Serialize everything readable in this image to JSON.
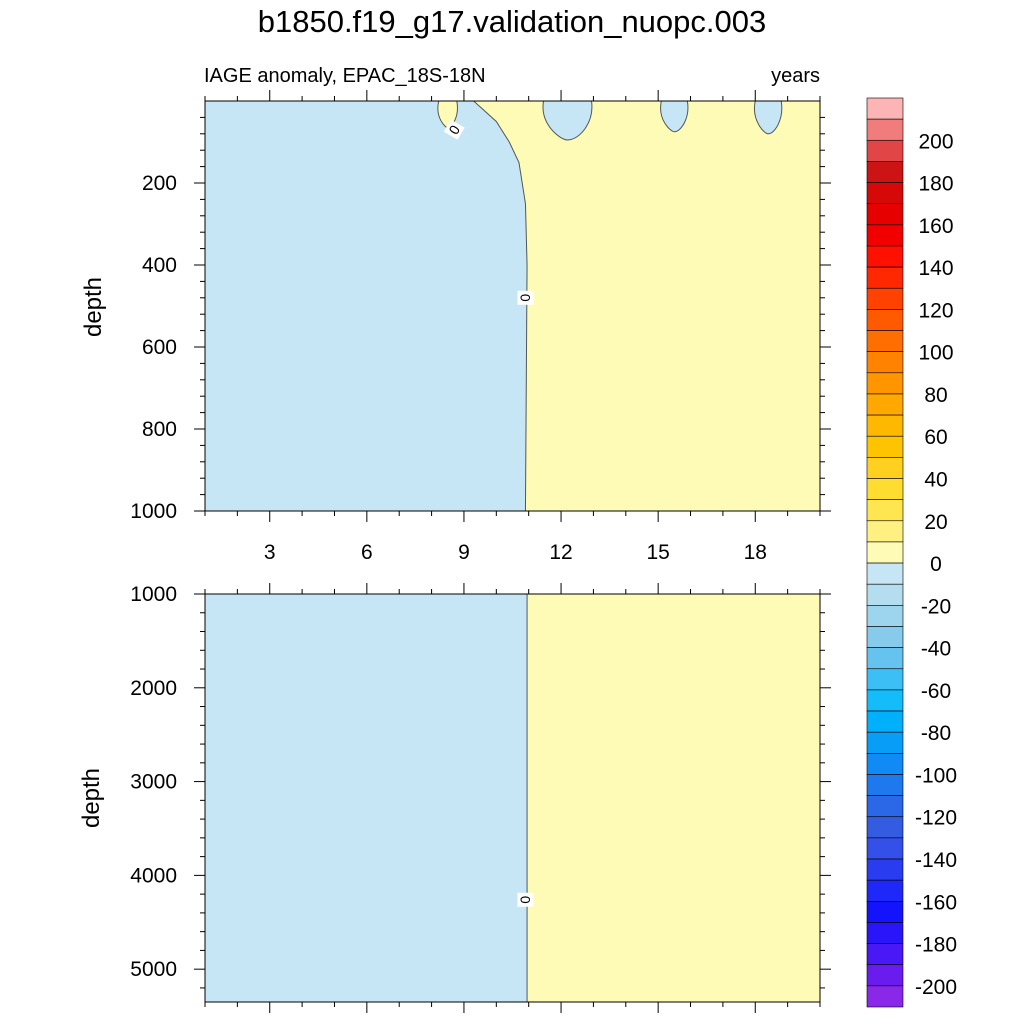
{
  "title": "b1850.f19_g17.validation_nuopc.003",
  "subtitle_left": "IAGE anomaly, EPAC_18S-18N",
  "subtitle_right": "years",
  "colors": {
    "negative_fill": "#c6e6f5",
    "positive_fill": "#fefbb6",
    "contour_line": "#555555"
  },
  "chart_data": [
    {
      "type": "heatmap",
      "name": "upper",
      "ylabel": "depth",
      "xlim": [
        1,
        20
      ],
      "ylim": [
        1000,
        0
      ],
      "xticks": [
        3,
        6,
        9,
        12,
        15,
        18
      ],
      "yticks": [
        200,
        400,
        600,
        800,
        1000
      ],
      "x_tick_labels": [
        "3",
        "6",
        "9",
        "12",
        "15",
        "18"
      ],
      "y_tick_labels": [
        "200",
        "400",
        "600",
        "800",
        "1000"
      ],
      "contour_labels": [
        {
          "text": "0",
          "x": 8.7,
          "depth": 70
        },
        {
          "text": "0",
          "x": 10.9,
          "depth": 480
        }
      ],
      "zero_contour_boundary": [
        [
          10.9,
          1000
        ],
        [
          10.95,
          400
        ],
        [
          10.9,
          250
        ],
        [
          10.7,
          150
        ],
        [
          10.4,
          100
        ],
        [
          10.0,
          50
        ],
        [
          9.3,
          0
        ]
      ],
      "negative_patches_in_positive_region": [
        {
          "x_center": 12.2,
          "depth_bottom": 95
        },
        {
          "x_center": 15.5,
          "depth_bottom": 75
        },
        {
          "x_center": 18.4,
          "depth_bottom": 80
        }
      ],
      "positive_patches_in_negative_region": [
        {
          "x_center": 8.5,
          "depth_bottom": 65
        }
      ]
    },
    {
      "type": "heatmap",
      "name": "lower",
      "ylabel": "depth",
      "xlim": [
        1,
        20
      ],
      "ylim": [
        5350,
        1000
      ],
      "yticks": [
        1000,
        2000,
        3000,
        4000,
        5000
      ],
      "y_tick_labels": [
        "1000",
        "2000",
        "3000",
        "4000",
        "5000"
      ],
      "contour_labels": [
        {
          "text": "0",
          "x": 10.9,
          "depth": 4260
        }
      ],
      "zero_contour_x": 10.95
    }
  ],
  "colorbar": {
    "levels": [
      {
        "color": "#fdb4b4",
        "label": ""
      },
      {
        "color": "#f07c7c",
        "label": "200"
      },
      {
        "color": "#e24545",
        "label": ""
      },
      {
        "color": "#cc1414",
        "label": "180"
      },
      {
        "color": "#d60808",
        "label": ""
      },
      {
        "color": "#e60000",
        "label": "160"
      },
      {
        "color": "#f20000",
        "label": ""
      },
      {
        "color": "#ff1000",
        "label": "140"
      },
      {
        "color": "#ff2800",
        "label": ""
      },
      {
        "color": "#ff4200",
        "label": "120"
      },
      {
        "color": "#ff5a00",
        "label": ""
      },
      {
        "color": "#ff6e00",
        "label": "100"
      },
      {
        "color": "#ff8200",
        "label": ""
      },
      {
        "color": "#ff9600",
        "label": "80"
      },
      {
        "color": "#ffa800",
        "label": ""
      },
      {
        "color": "#ffb800",
        "label": "60"
      },
      {
        "color": "#ffc400",
        "label": ""
      },
      {
        "color": "#ffd020",
        "label": "40"
      },
      {
        "color": "#ffdc30",
        "label": ""
      },
      {
        "color": "#ffe650",
        "label": "20"
      },
      {
        "color": "#fff082",
        "label": ""
      },
      {
        "color": "#fefbb6",
        "label": "0"
      },
      {
        "color": "#c6e6f5",
        "label": ""
      },
      {
        "color": "#b4ddf0",
        "label": "-20"
      },
      {
        "color": "#9dd4ee",
        "label": ""
      },
      {
        "color": "#86cbec",
        "label": "-40"
      },
      {
        "color": "#66c2ee",
        "label": ""
      },
      {
        "color": "#3cbff5",
        "label": "-60"
      },
      {
        "color": "#14bcfa",
        "label": ""
      },
      {
        "color": "#00b0fa",
        "label": "-80"
      },
      {
        "color": "#089ef8",
        "label": ""
      },
      {
        "color": "#108af4",
        "label": "-100"
      },
      {
        "color": "#1e78ee",
        "label": ""
      },
      {
        "color": "#2a68e8",
        "label": "-120"
      },
      {
        "color": "#345ce0",
        "label": ""
      },
      {
        "color": "#3450e8",
        "label": "-140"
      },
      {
        "color": "#2a3cf0",
        "label": ""
      },
      {
        "color": "#1e28f8",
        "label": "-160"
      },
      {
        "color": "#1414fc",
        "label": ""
      },
      {
        "color": "#2a14fa",
        "label": "-180"
      },
      {
        "color": "#4a18f4",
        "label": ""
      },
      {
        "color": "#6a1cee",
        "label": "-200"
      },
      {
        "color": "#8a28ea",
        "label": ""
      }
    ]
  }
}
